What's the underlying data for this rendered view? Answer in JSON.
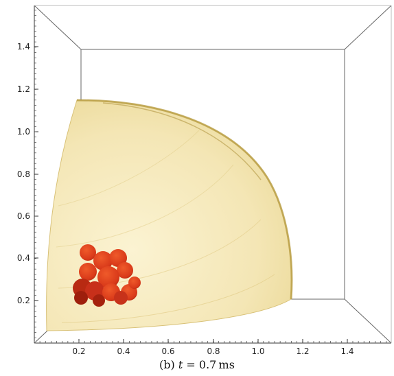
{
  "figure": {
    "caption": {
      "tag": "(b)",
      "variable": "t",
      "equals": " = ",
      "value": "0.7",
      "unit": "ms"
    },
    "y_axis": {
      "ticks": [
        "0.2",
        "0.4",
        "0.6",
        "0.8",
        "1.0",
        "1.2",
        "1.4"
      ],
      "range": [
        0.0,
        1.6
      ]
    },
    "x_axis": {
      "ticks": [
        "0.2",
        "0.4",
        "0.6",
        "0.8",
        "1.0",
        "1.2",
        "1.4"
      ],
      "range": [
        0.0,
        1.6
      ]
    },
    "colors": {
      "shell": "#f3e6b6",
      "shell_edge": "#c9a64a",
      "core": "#d93a1a",
      "core_dark": "#9e1f0c",
      "frame": "#777777"
    }
  }
}
